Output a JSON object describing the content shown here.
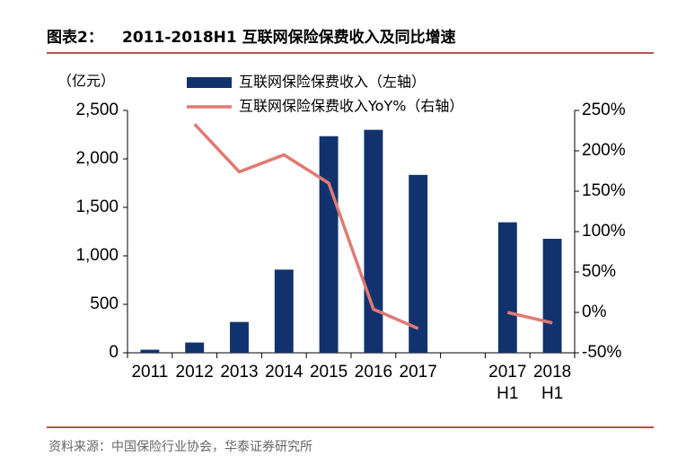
{
  "chart_data": {
    "type": "bar_line",
    "figure_label": "图表2：",
    "title": "2011-2018H1 互联网保险保费收入及同比增速",
    "y_unit": "（亿元）",
    "source": "资料来源：中国保险行业协会，华泰证券研究所",
    "categories": [
      "2011",
      "2012",
      "2013",
      "2014",
      "2015",
      "2016",
      "2017",
      null,
      [
        "2017",
        "H1"
      ],
      [
        "2018",
        "H1"
      ]
    ],
    "series": [
      {
        "name": "互联网保险保费收入（左轴）",
        "type": "bar",
        "color": "#12326e",
        "values": [
          32,
          106,
          318,
          858,
          2234,
          2300,
          1835,
          null,
          1346,
          1176
        ]
      },
      {
        "name": "互联网保险保费收入YoY%（右轴）",
        "type": "line",
        "axis": "y2",
        "color": "#e07a73",
        "values": [
          null,
          233,
          174,
          195,
          160,
          4,
          -20,
          null,
          0,
          -13
        ]
      }
    ],
    "ylim": [
      0,
      2500
    ],
    "yticks": [
      0,
      500,
      {
        "value": 1000,
        "label": "1,000"
      },
      {
        "value": 1500,
        "label": "1,500"
      },
      {
        "value": 2000,
        "label": "2,000"
      },
      {
        "value": 2500,
        "label": "2,500"
      }
    ],
    "y2lim": [
      -50,
      250
    ],
    "y2ticks": [
      {
        "value": -50,
        "label": "-50%"
      },
      {
        "value": 0,
        "label": "0%"
      },
      {
        "value": 50,
        "label": "50%"
      },
      {
        "value": 100,
        "label": "100%"
      },
      {
        "value": 150,
        "label": "150%"
      },
      {
        "value": 200,
        "label": "200%"
      },
      {
        "value": 250,
        "label": "250%"
      }
    ]
  }
}
